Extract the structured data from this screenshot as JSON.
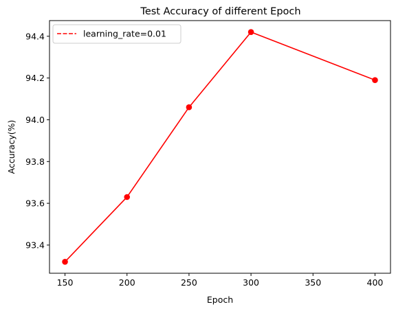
{
  "chart_data": {
    "type": "line",
    "title": "Test Accuracy of different Epoch",
    "xlabel": "Epoch",
    "ylabel": "Accuracy(%)",
    "x": [
      150,
      200,
      250,
      300,
      400
    ],
    "series": [
      {
        "name": "learning_rate=0.01",
        "values": [
          93.32,
          93.63,
          94.06,
          94.42,
          94.19
        ],
        "color": "#ff0000",
        "legend_line_style": "dashed",
        "marker": "circle"
      }
    ],
    "xticks": [
      "150",
      "200",
      "250",
      "300",
      "350",
      "400"
    ],
    "yticks": [
      "93.4",
      "93.6",
      "93.8",
      "94.0",
      "94.2",
      "94.4"
    ],
    "xlim": [
      137.5,
      412.5
    ],
    "ylim": [
      93.265,
      94.475
    ],
    "grid": false,
    "legend_position": "top-left"
  }
}
